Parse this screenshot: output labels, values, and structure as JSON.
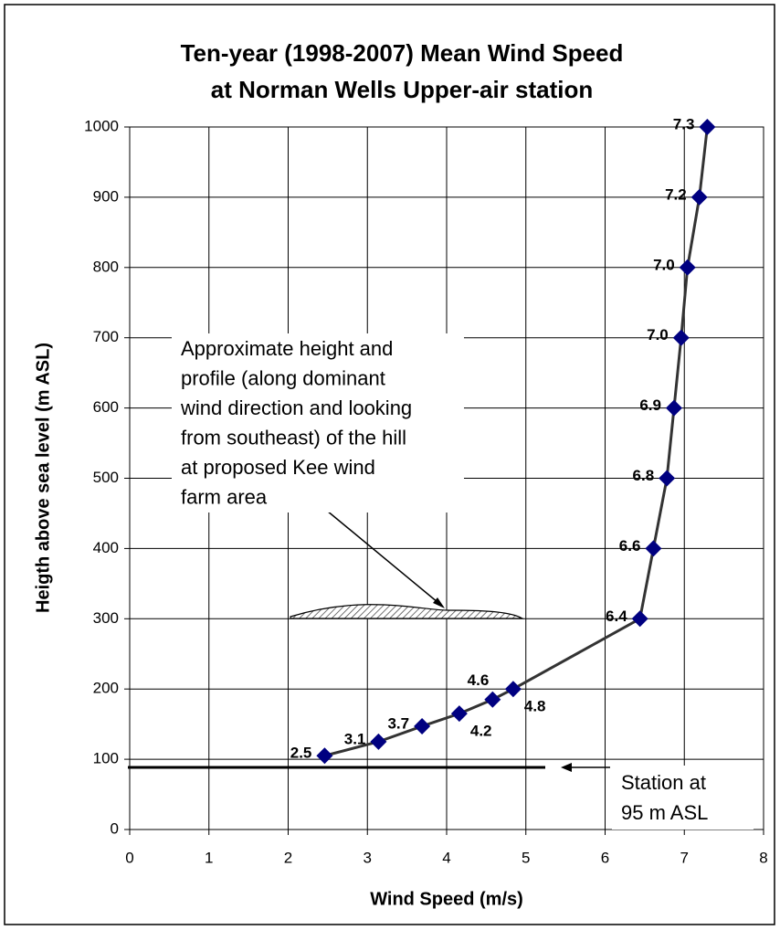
{
  "chart_data": {
    "type": "line",
    "title": [
      "Ten-year (1998-2007) Mean Wind Speed",
      "at Norman Wells Upper-air station"
    ],
    "x_label": "Wind Speed (m/s)",
    "y_label": "Heigth above sea level (m ASL)",
    "x": [
      2.46,
      3.14,
      3.69,
      4.16,
      4.58,
      4.84,
      6.44,
      6.61,
      6.78,
      6.87,
      6.96,
      7.04,
      7.19,
      7.29
    ],
    "series": [
      {
        "color": "#000080",
        "line_color": "#333333",
        "values": [
          105,
          125,
          147,
          165,
          185,
          200,
          300,
          400,
          500,
          600,
          700,
          800,
          900,
          1000
        ],
        "value_labels": [
          "2.5",
          "3.1",
          "3.7",
          "4.2",
          "4.6",
          "4.8",
          "6.4",
          "6.6",
          "6.8",
          "6.9",
          "7.0",
          "7.0",
          "7.2",
          "7.3"
        ]
      }
    ],
    "xlim": [
      0,
      8
    ],
    "xticks": [
      0,
      1,
      2,
      3,
      4,
      5,
      6,
      7,
      8
    ],
    "ylim": [
      0,
      1000
    ],
    "yticks": [
      0,
      100,
      200,
      300,
      400,
      500,
      600,
      700,
      800,
      900,
      1000
    ],
    "grid": true,
    "annotations": [
      {
        "text": [
          "Approximate height and",
          "profile (along dominant",
          "wind direction and looking",
          "from southeast) of the hill",
          "at proposed Kee wind",
          "farm area"
        ]
      },
      {
        "text": [
          "Station at",
          "95 m ASL"
        ]
      }
    ]
  }
}
